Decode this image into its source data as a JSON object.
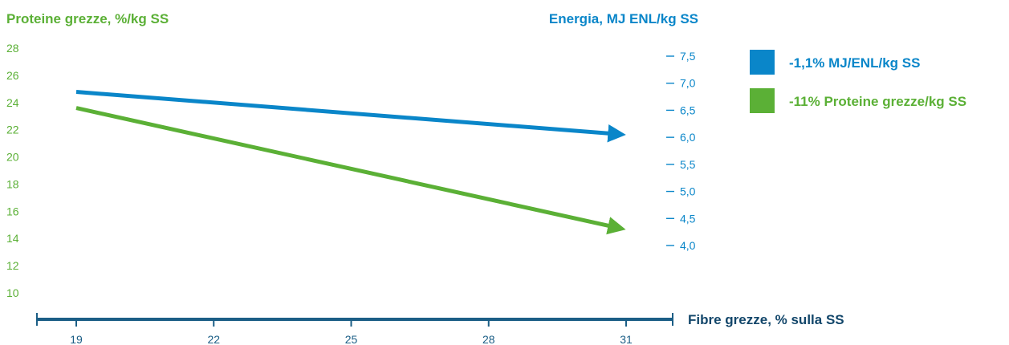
{
  "colors": {
    "green": "#5bb036",
    "blue": "#0a86c9",
    "axis": "#1b5e86",
    "axis_label": "#12466a"
  },
  "chart_data": {
    "type": "line",
    "title_left": "Proteine grezze, %/kg SS",
    "title_right": "Energia, MJ ENL/kg SS",
    "xlabel": "Fibre grezze, % sulla SS",
    "x_ticks": [
      "19",
      "22",
      "25",
      "28",
      "31"
    ],
    "x_range": [
      19,
      31
    ],
    "y_left_ticks": [
      "10",
      "12",
      "14",
      "16",
      "18",
      "20",
      "22",
      "24",
      "26",
      "28"
    ],
    "y_left_range": [
      10,
      28
    ],
    "y_right_ticks": [
      "4,0",
      "4,5",
      "5,0",
      "5,5",
      "6,0",
      "6,5",
      "7,0",
      "7,5"
    ],
    "y_right_range": [
      4.0,
      7.5
    ],
    "series": [
      {
        "name": "-1,1% MJ/ENL/kg SS",
        "axis": "right",
        "color": "#0a86c9",
        "x": [
          19,
          30.8
        ],
        "y": [
          6.84,
          6.06
        ]
      },
      {
        "name": "-11% Proteine grezze/kg SS",
        "axis": "left",
        "color": "#5bb036",
        "x": [
          19,
          30.8
        ],
        "y": [
          23.6,
          14.8
        ]
      }
    ],
    "legend_position": "right",
    "grid": true,
    "arrows": true
  }
}
